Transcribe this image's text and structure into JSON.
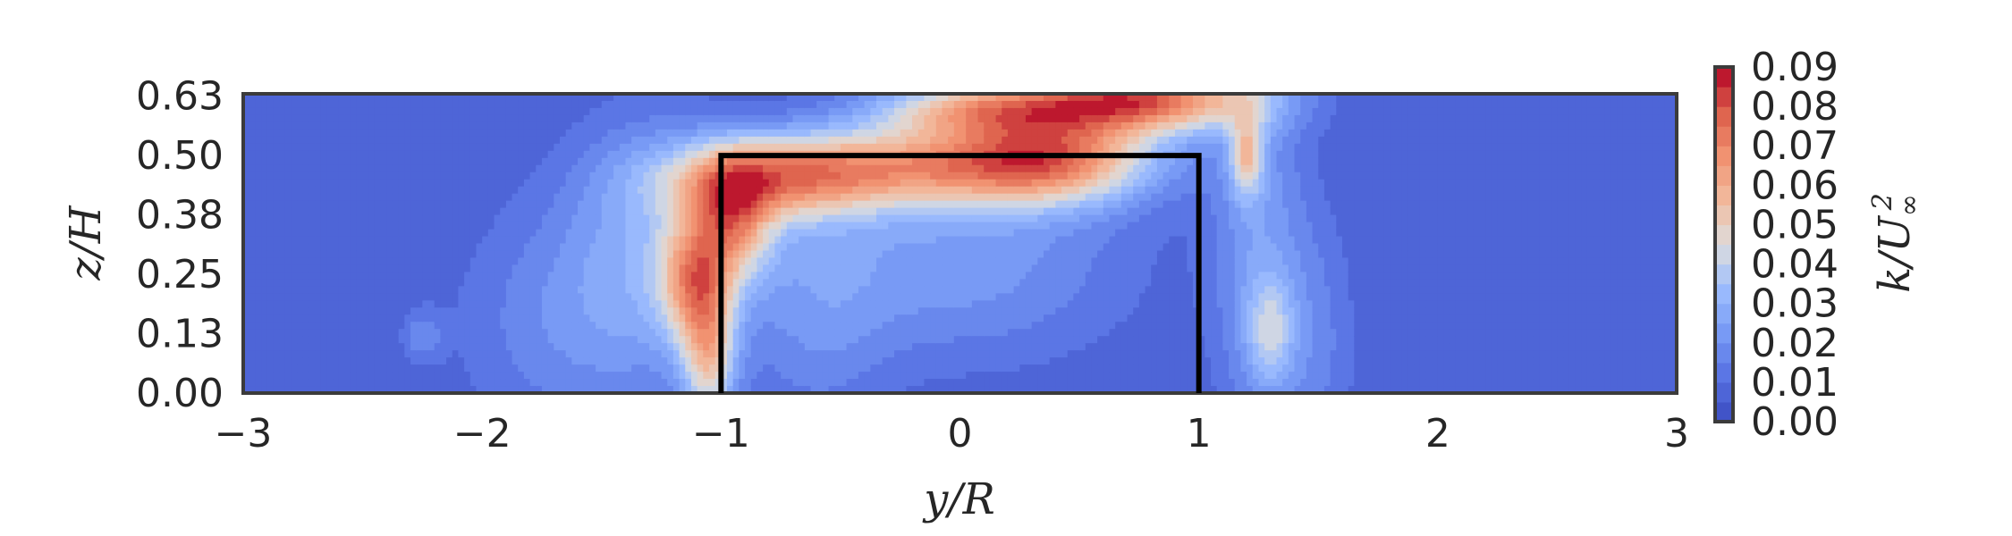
{
  "chart_data": {
    "type": "heatmap",
    "title": "",
    "xlabel": "y/R",
    "ylabel": "z/H",
    "xlim": [
      -3,
      3
    ],
    "ylim": [
      0,
      0.63
    ],
    "x_ticks": [
      {
        "value": -3,
        "label": "−3"
      },
      {
        "value": -2,
        "label": "−2"
      },
      {
        "value": -1,
        "label": "−1"
      },
      {
        "value": 0,
        "label": "0"
      },
      {
        "value": 1,
        "label": "1"
      },
      {
        "value": 2,
        "label": "2"
      },
      {
        "value": 3,
        "label": "3"
      }
    ],
    "y_ticks": [
      {
        "value": 0.0,
        "label": "0.00"
      },
      {
        "value": 0.125,
        "label": "0.13"
      },
      {
        "value": 0.25,
        "label": "0.25"
      },
      {
        "value": 0.375,
        "label": "0.38"
      },
      {
        "value": 0.5,
        "label": "0.50"
      },
      {
        "value": 0.625,
        "label": "0.63"
      }
    ],
    "colorbar": {
      "label": "k/U∞²",
      "label_base": "k/U",
      "label_sub": "∞",
      "label_sup": "2",
      "min": 0.0,
      "max": 0.09,
      "ticks": [
        "0.00",
        "0.01",
        "0.02",
        "0.03",
        "0.04",
        "0.05",
        "0.06",
        "0.07",
        "0.08",
        "0.09"
      ],
      "colormap": "coolwarm"
    },
    "rotor_outline": {
      "y_min": -1,
      "y_max": 1,
      "z_min": 0,
      "z_max": 0.5,
      "color": "#000000"
    },
    "field": {
      "background": 0.005,
      "features": [
        {
          "y": -0.8,
          "z": 0.45,
          "sy": 0.32,
          "sz": 0.06,
          "a": 0.045
        },
        {
          "y": -0.15,
          "z": 0.48,
          "sy": 0.45,
          "sz": 0.06,
          "a": 0.045
        },
        {
          "y": 0.4,
          "z": 0.5,
          "sy": 0.3,
          "sz": 0.07,
          "a": 0.05
        },
        {
          "y": 0.75,
          "z": 0.62,
          "sy": 0.35,
          "sz": 0.05,
          "a": 0.07
        },
        {
          "y": 0.05,
          "z": 0.6,
          "sy": 0.3,
          "sz": 0.04,
          "a": 0.04
        },
        {
          "y": -0.95,
          "z": 0.36,
          "sy": 0.12,
          "sz": 0.09,
          "a": 0.045
        },
        {
          "y": -1.12,
          "z": 0.24,
          "sy": 0.1,
          "sz": 0.09,
          "a": 0.04
        },
        {
          "y": -1.05,
          "z": 0.08,
          "sy": 0.08,
          "sz": 0.11,
          "a": 0.04
        },
        {
          "y": -1.3,
          "z": 0.3,
          "sy": 0.25,
          "sz": 0.2,
          "a": 0.02
        },
        {
          "y": -1.7,
          "z": 0.15,
          "sy": 0.3,
          "sz": 0.18,
          "a": 0.012
        },
        {
          "y": -0.6,
          "z": 0.18,
          "sy": 0.22,
          "sz": 0.2,
          "a": 0.012
        },
        {
          "y": 0.0,
          "z": 0.28,
          "sy": 0.5,
          "sz": 0.15,
          "a": 0.018
        },
        {
          "y": 1.2,
          "z": 0.5,
          "sy": 0.05,
          "sz": 0.06,
          "a": 0.035
        },
        {
          "y": 1.25,
          "z": 0.3,
          "sy": 0.14,
          "sz": 0.3,
          "a": 0.018
        },
        {
          "y": 1.3,
          "z": 0.13,
          "sy": 0.07,
          "sz": 0.08,
          "a": 0.022
        },
        {
          "y": 1.5,
          "z": 0.1,
          "sy": 0.12,
          "sz": 0.2,
          "a": 0.01
        },
        {
          "y": -2.25,
          "z": 0.12,
          "sy": 0.06,
          "sz": 0.04,
          "a": 0.012
        }
      ]
    }
  },
  "colors": {
    "frame": "#3b3b3b",
    "text": "#262626"
  }
}
